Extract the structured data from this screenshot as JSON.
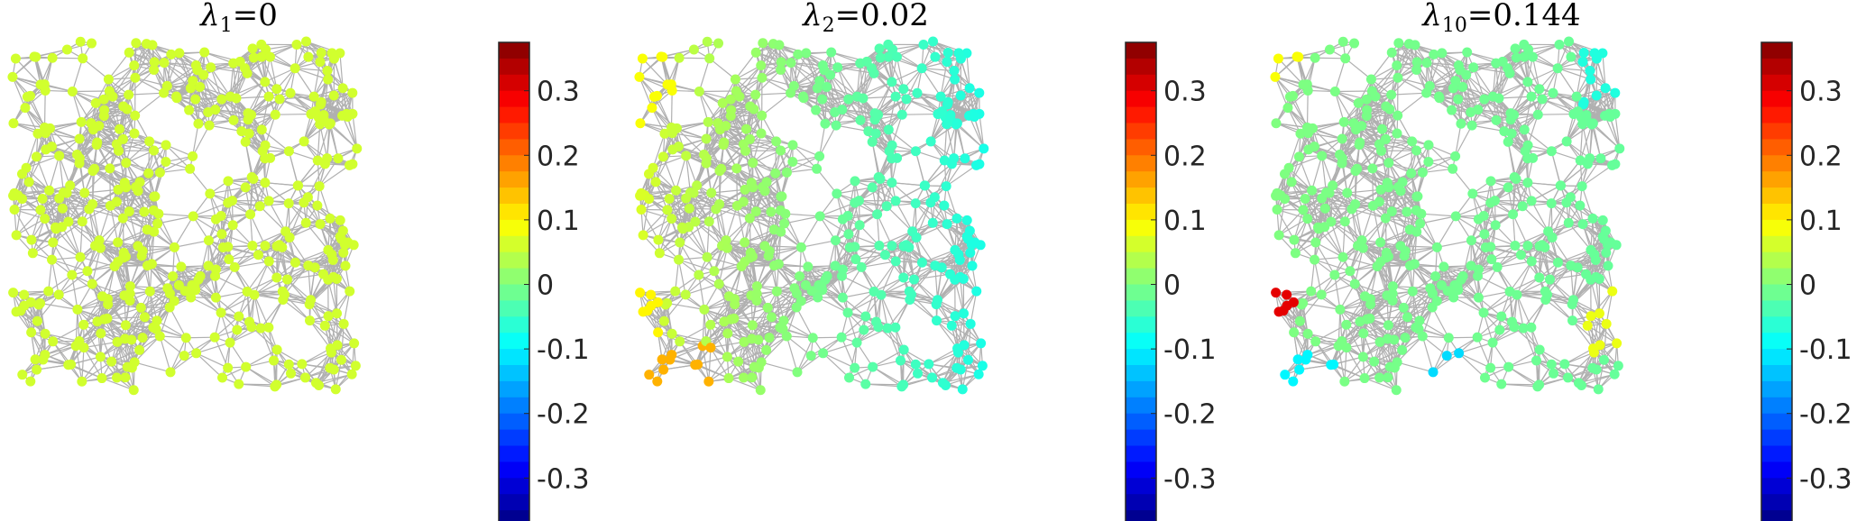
{
  "chart_data": [
    {
      "type": "network",
      "title_symbol": "λ",
      "title_subscript": "1",
      "title_value": "=0",
      "colorbar": {
        "colormap": "jet",
        "range": [
          -0.375,
          0.375
        ],
        "ticks": [
          "0.3",
          "0.2",
          "0.1",
          "0",
          "-0.1",
          "-0.2",
          "-0.3"
        ]
      },
      "node_value_rule": "uniform 0.06"
    },
    {
      "type": "network",
      "title_symbol": "λ",
      "title_subscript": "2",
      "title_value": "=0.02",
      "colorbar": {
        "colormap": "jet",
        "range": [
          -0.375,
          0.375
        ],
        "ticks": [
          "0.3",
          "0.2",
          "0.1",
          "0",
          "-0.1",
          "-0.2",
          "-0.3"
        ]
      },
      "node_value_rule": "gradient left-positive (~0.1) to right-negative (~-0.08); bottom-left cluster ~0.15"
    },
    {
      "type": "network",
      "title_symbol": "λ",
      "title_subscript": "10",
      "title_value": "=0.144",
      "colorbar": {
        "colormap": "jet",
        "range": [
          -0.375,
          0.375
        ],
        "ticks": [
          "0.3",
          "0.2",
          "0.1",
          "0",
          "-0.1",
          "-0.2",
          "-0.3"
        ]
      },
      "node_value_rule": "mostly ~0; left-middle red cluster ~0.3; bottom cyan clusters ~-0.1; top-left yellow ~0.09"
    }
  ]
}
